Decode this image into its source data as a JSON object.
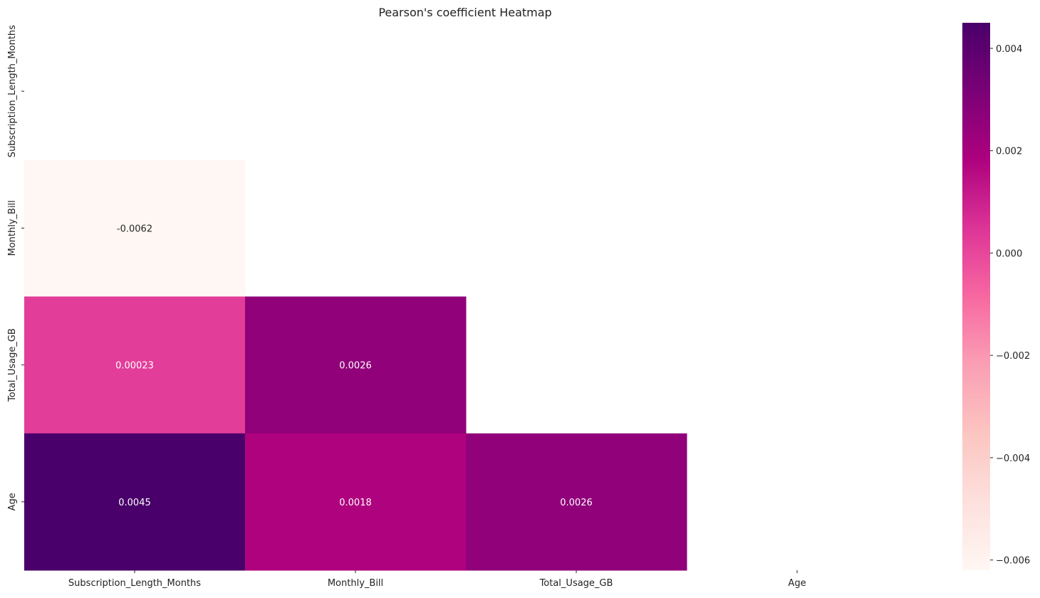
{
  "chart_data": {
    "type": "heatmap",
    "title": "Pearson's coefficient Heatmap",
    "xlabel": "",
    "ylabel": "",
    "rows": [
      "Subscription_Length_Months",
      "Monthly_Bill",
      "Total_Usage_GB",
      "Age"
    ],
    "columns": [
      "Subscription_Length_Months",
      "Monthly_Bill",
      "Total_Usage_GB",
      "Age"
    ],
    "mask": "upper-triangle-including-diagonal",
    "cells": [
      {
        "row": 1,
        "col": 0,
        "value": -0.0062,
        "label": "-0.0062"
      },
      {
        "row": 2,
        "col": 0,
        "value": 0.00023,
        "label": "0.00023"
      },
      {
        "row": 2,
        "col": 1,
        "value": 0.0026,
        "label": "0.0026"
      },
      {
        "row": 3,
        "col": 0,
        "value": 0.0045,
        "label": "0.0045"
      },
      {
        "row": 3,
        "col": 1,
        "value": 0.0018,
        "label": "0.0018"
      },
      {
        "row": 3,
        "col": 2,
        "value": 0.0026,
        "label": "0.0026"
      }
    ],
    "colormap": "RdPu",
    "color_range": [
      -0.0062,
      0.0045
    ],
    "colorbar": {
      "ticks": [
        0.004,
        0.002,
        0.0,
        -0.002,
        -0.004,
        -0.006
      ],
      "tick_labels": [
        "0.004",
        "0.002",
        "0.000",
        "−0.002",
        "−0.004",
        "−0.006"
      ]
    },
    "grid": false,
    "legend": "colorbar-right"
  }
}
